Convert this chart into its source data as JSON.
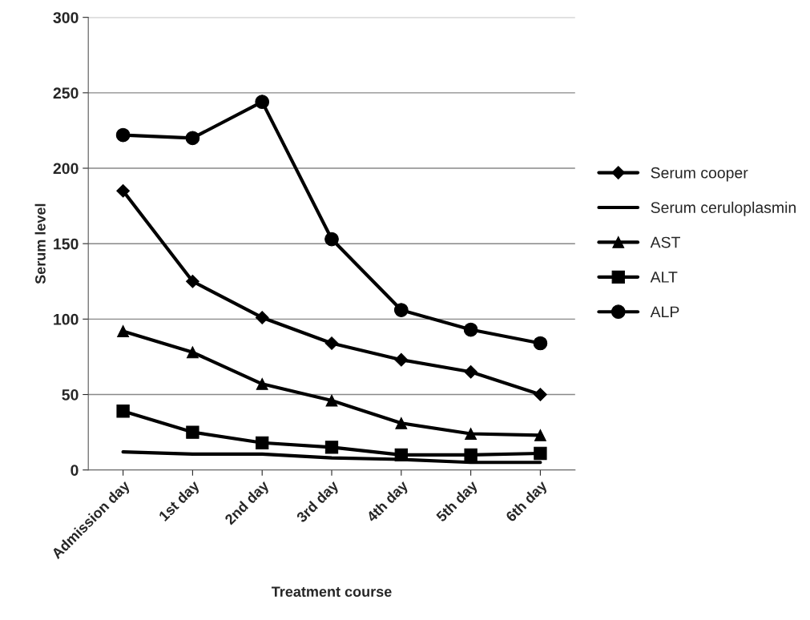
{
  "chart_data": {
    "type": "line",
    "xlabel": "Treatment course",
    "ylabel": "Serum level",
    "categories": [
      "Admission day",
      "1st day",
      "2nd day",
      "3rd day",
      "4th day",
      "5th day",
      "6th day"
    ],
    "series": [
      {
        "name": "Serum cooper",
        "color": "#000000",
        "marker": "diamond",
        "values": [
          185,
          125,
          101,
          84,
          73,
          65,
          50
        ]
      },
      {
        "name": "Serum ceruloplasmin",
        "color": "#000000",
        "marker": "none",
        "values": [
          12,
          10.5,
          10.5,
          8,
          7,
          5,
          5
        ]
      },
      {
        "name": "AST",
        "color": "#000000",
        "marker": "triangle",
        "values": [
          92,
          78,
          57,
          46,
          31,
          24,
          23
        ]
      },
      {
        "name": "ALT",
        "color": "#000000",
        "marker": "square",
        "values": [
          39,
          25,
          18,
          15,
          10,
          10,
          11
        ]
      },
      {
        "name": "ALP",
        "color": "#000000",
        "marker": "circle",
        "values": [
          222,
          220,
          244,
          153,
          106,
          93,
          84
        ]
      }
    ],
    "ylim": [
      0,
      300
    ],
    "yticks": [
      0,
      50,
      100,
      150,
      200,
      250,
      300
    ],
    "grid": "y",
    "legend": "right",
    "line_style": "solid"
  }
}
